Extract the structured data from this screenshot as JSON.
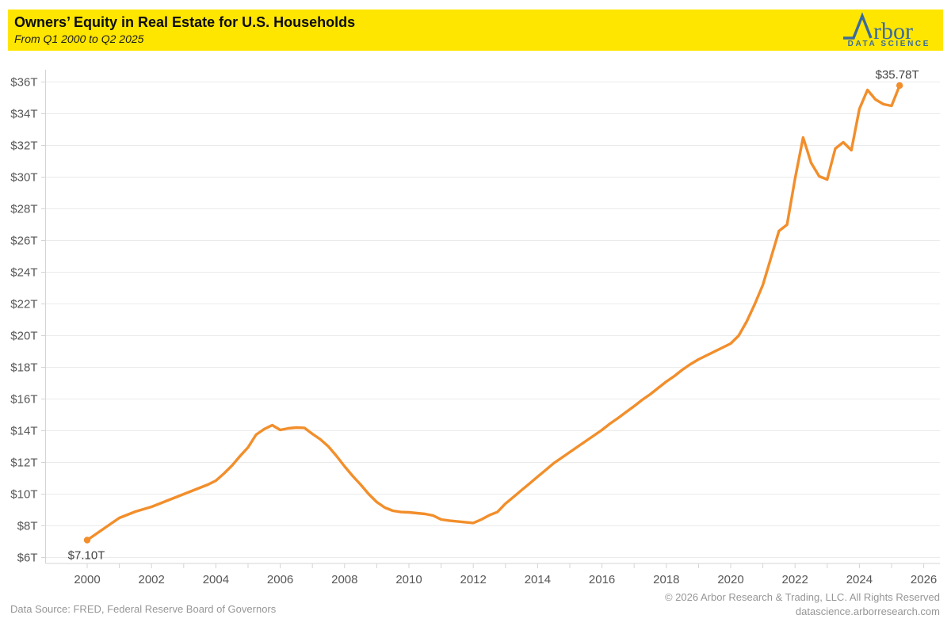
{
  "header": {
    "title": "Owners’ Equity in Real Estate for U.S. Households",
    "subtitle": "From Q1 2000 to Q2 2025",
    "logo": {
      "brand_suffix": "rbor",
      "tagline": "DATA SCIENCE"
    }
  },
  "footer": {
    "source": "Data Source: FRED, Federal Reserve Board of Governors",
    "copyright": "© 2026 Arbor Research & Trading, LLC. All Rights Reserved",
    "website": "datascience.arborresearch.com"
  },
  "colors": {
    "header_background": "#FFE600",
    "logo_blue": "#3A6B9E",
    "line_orange": "#F28E2B",
    "axis_text": "#565656",
    "grid_line": "#ebebeb",
    "axis_line": "#d4d4d4",
    "annotation_text": "#414141"
  },
  "chart_data": {
    "type": "line",
    "title": "Owners’ Equity in Real Estate for U.S. Households",
    "subtitle": "From Q1 2000 to Q2 2025",
    "xlabel": "",
    "ylabel": "",
    "unit": "trillion USD",
    "frequency": "quarterly",
    "start_quarter": "Q1 2000",
    "end_quarter": "Q2 2025",
    "xlim": [
      2000,
      2026
    ],
    "ylim": [
      6,
      36
    ],
    "grid": true,
    "legend": false,
    "line_color": "#F28E2B",
    "x_ticks": [
      {
        "value": 2000,
        "label": "2000"
      },
      {
        "value": 2002,
        "label": "2002"
      },
      {
        "value": 2004,
        "label": "2004"
      },
      {
        "value": 2006,
        "label": "2006"
      },
      {
        "value": 2008,
        "label": "2008"
      },
      {
        "value": 2010,
        "label": "2010"
      },
      {
        "value": 2012,
        "label": "2012"
      },
      {
        "value": 2014,
        "label": "2014"
      },
      {
        "value": 2016,
        "label": "2016"
      },
      {
        "value": 2018,
        "label": "2018"
      },
      {
        "value": 2020,
        "label": "2020"
      },
      {
        "value": 2022,
        "label": "2022"
      },
      {
        "value": 2024,
        "label": "2024"
      },
      {
        "value": 2026,
        "label": "2026"
      }
    ],
    "y_ticks": [
      {
        "value": 6,
        "label": "$6T"
      },
      {
        "value": 8,
        "label": "$8T"
      },
      {
        "value": 10,
        "label": "$10T"
      },
      {
        "value": 12,
        "label": "$12T"
      },
      {
        "value": 14,
        "label": "$14T"
      },
      {
        "value": 16,
        "label": "$16T"
      },
      {
        "value": 18,
        "label": "$18T"
      },
      {
        "value": 20,
        "label": "$20T"
      },
      {
        "value": 22,
        "label": "$22T"
      },
      {
        "value": 24,
        "label": "$24T"
      },
      {
        "value": 26,
        "label": "$26T"
      },
      {
        "value": 28,
        "label": "$28T"
      },
      {
        "value": 30,
        "label": "$30T"
      },
      {
        "value": 32,
        "label": "$32T"
      },
      {
        "value": 34,
        "label": "$34T"
      },
      {
        "value": 36,
        "label": "$36T"
      }
    ],
    "values": [
      7.1,
      7.45,
      7.8,
      8.15,
      8.5,
      8.7,
      8.9,
      9.05,
      9.2,
      9.4,
      9.6,
      9.8,
      10.0,
      10.2,
      10.4,
      10.6,
      10.85,
      11.3,
      11.8,
      12.4,
      12.95,
      13.75,
      14.1,
      14.35,
      14.05,
      14.15,
      14.2,
      14.18,
      13.8,
      13.45,
      13.0,
      12.4,
      11.75,
      11.15,
      10.6,
      10.0,
      9.5,
      9.15,
      8.95,
      8.87,
      8.85,
      8.8,
      8.75,
      8.65,
      8.4,
      8.33,
      8.28,
      8.23,
      8.18,
      8.4,
      8.67,
      8.87,
      9.4,
      9.82,
      10.25,
      10.67,
      11.1,
      11.52,
      11.95,
      12.3,
      12.65,
      13.0,
      13.35,
      13.7,
      14.05,
      14.45,
      14.8,
      15.18,
      15.55,
      15.95,
      16.3,
      16.7,
      17.1,
      17.45,
      17.85,
      18.2,
      18.5,
      18.75,
      19.0,
      19.25,
      19.5,
      20.0,
      20.9,
      22.0,
      23.2,
      24.9,
      26.6,
      27.0,
      29.9,
      32.5,
      30.9,
      30.05,
      29.85,
      31.8,
      32.2,
      31.7,
      34.3,
      35.5,
      34.9,
      34.6,
      34.5,
      35.78
    ],
    "annotations": [
      {
        "text": "$7.10T",
        "position": "start",
        "value": 7.1
      },
      {
        "text": "$35.78T",
        "position": "end",
        "value": 35.78
      }
    ]
  }
}
